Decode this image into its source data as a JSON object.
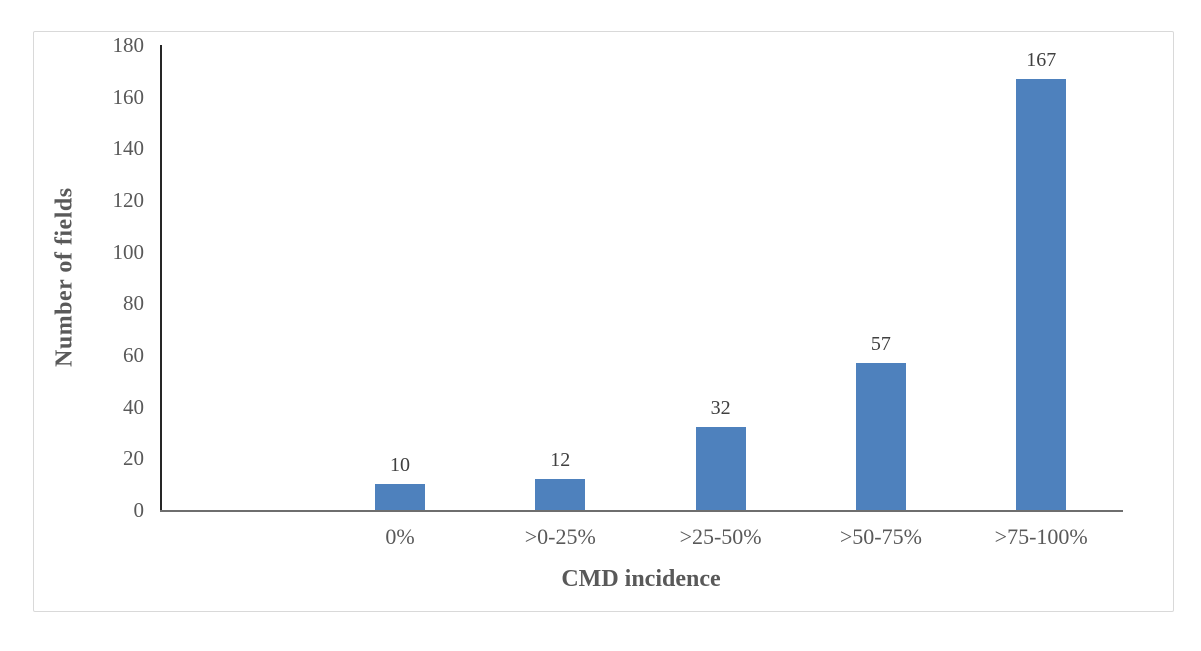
{
  "chart_data": {
    "type": "bar",
    "categories": [
      "0%",
      ">0-25%",
      ">25-50%",
      ">50-75%",
      ">75-100%"
    ],
    "values": [
      10,
      12,
      32,
      57,
      167
    ],
    "data_labels": [
      "10",
      "12",
      "32",
      "57",
      "167"
    ],
    "title": "",
    "xlabel": "CMD incidence",
    "ylabel": "Number of fields",
    "ylim": [
      0,
      180
    ],
    "yticks": [
      0,
      20,
      40,
      60,
      80,
      100,
      120,
      140,
      160,
      180
    ],
    "grid": false,
    "legend_position": "none",
    "bar_color": "#4E81BD",
    "axis_text_color": "#595959",
    "data_label_color": "#404040"
  }
}
